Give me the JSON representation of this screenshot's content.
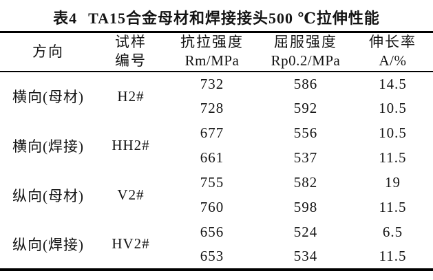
{
  "caption": {
    "label": "表4",
    "text": "TA15合金母材和焊接接头500 ℃拉伸性能"
  },
  "table": {
    "columns": [
      {
        "name": "direction",
        "line1": "方向",
        "line2": ""
      },
      {
        "name": "sample-id",
        "line1": "试样",
        "line2": "编号"
      },
      {
        "name": "tensile-strength",
        "line1": "抗拉强度",
        "line2": "Rm/MPa"
      },
      {
        "name": "yield-strength",
        "line1": "屈服强度",
        "line2": "Rp0.2/MPa"
      },
      {
        "name": "elongation",
        "line1": "伸长率",
        "line2": "A/%"
      }
    ],
    "groups": [
      {
        "direction": "横向(母材)",
        "sample": "H2#",
        "rows": [
          [
            "732",
            "586",
            "14.5"
          ],
          [
            "728",
            "592",
            "10.5"
          ]
        ]
      },
      {
        "direction": "横向(焊接)",
        "sample": "HH2#",
        "rows": [
          [
            "677",
            "556",
            "10.5"
          ],
          [
            "661",
            "537",
            "11.5"
          ]
        ]
      },
      {
        "direction": "纵向(母材)",
        "sample": "V2#",
        "rows": [
          [
            "755",
            "582",
            "19"
          ],
          [
            "760",
            "598",
            "11.5"
          ]
        ]
      },
      {
        "direction": "纵向(焊接)",
        "sample": "HV2#",
        "rows": [
          [
            "656",
            "524",
            "6.5"
          ],
          [
            "653",
            "534",
            "11.5"
          ]
        ]
      }
    ]
  },
  "colors": {
    "text": "#141414",
    "rule": "#000000",
    "background": "#ffffff"
  }
}
